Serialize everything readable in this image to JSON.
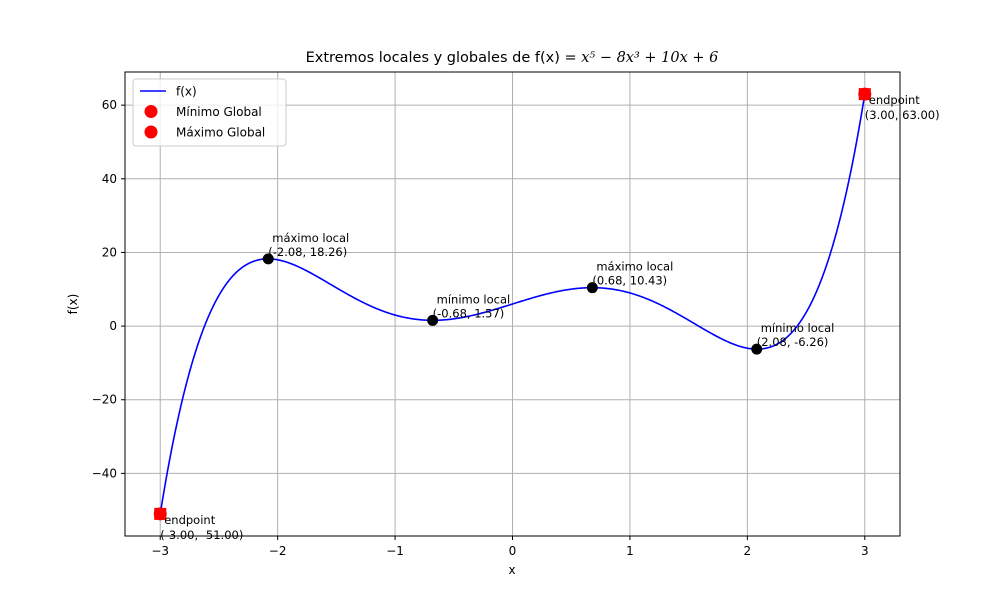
{
  "chart_data": {
    "type": "line",
    "title": "Extremos locales y globales de f(x) = ",
    "title_math": "x⁵ − 8x³ + 10x + 6",
    "xlabel": "x",
    "ylabel": "f(x)",
    "xlim": [
      -3.3,
      3.3
    ],
    "ylim": [
      -57,
      69
    ],
    "xticks": [
      -3,
      -2,
      -1,
      0,
      1,
      2,
      3
    ],
    "xtick_labels": [
      "−3",
      "−2",
      "−1",
      "0",
      "1",
      "2",
      "3"
    ],
    "yticks": [
      -40,
      -20,
      0,
      20,
      40,
      60
    ],
    "ytick_labels": [
      "−40",
      "−20",
      "0",
      "20",
      "40",
      "60"
    ],
    "grid": true,
    "function": {
      "expression": "x^5 - 8x^3 + 10x + 6",
      "domain": [
        -3,
        3
      ],
      "color": "#0000ff"
    },
    "series": [
      {
        "name": "f(x)",
        "type": "line",
        "color": "#0000ff"
      },
      {
        "name": "Mínimo Global",
        "type": "scatter",
        "color": "#ff0000",
        "points": [
          {
            "x": -3.0,
            "y": -51.0
          }
        ]
      },
      {
        "name": "Máximo Global",
        "type": "scatter",
        "color": "#ff0000",
        "points": [
          {
            "x": 3.0,
            "y": 63.0
          }
        ]
      }
    ],
    "local_extrema": [
      {
        "x": -2.08,
        "y": 18.26,
        "label": "máximo local",
        "coords": "(-2.08, 18.26)"
      },
      {
        "x": -0.68,
        "y": 1.57,
        "label": "mínimo local",
        "coords": "(-0.68, 1.57)"
      },
      {
        "x": 0.68,
        "y": 10.43,
        "label": "máximo local",
        "coords": "(0.68, 10.43)"
      },
      {
        "x": 2.08,
        "y": -6.26,
        "label": "mínimo local",
        "coords": "(2.08, -6.26)"
      }
    ],
    "endpoints": [
      {
        "x": -3.0,
        "y": -51.0,
        "label": "endpoint",
        "coords": "(-3.00, -51.00)"
      },
      {
        "x": 3.0,
        "y": 63.0,
        "label": "endpoint",
        "coords": "(3.00, 63.00)"
      }
    ],
    "legend": {
      "placement": "top-left",
      "entries": [
        "f(x)",
        "Mínimo Global",
        "Máximo Global"
      ]
    }
  }
}
